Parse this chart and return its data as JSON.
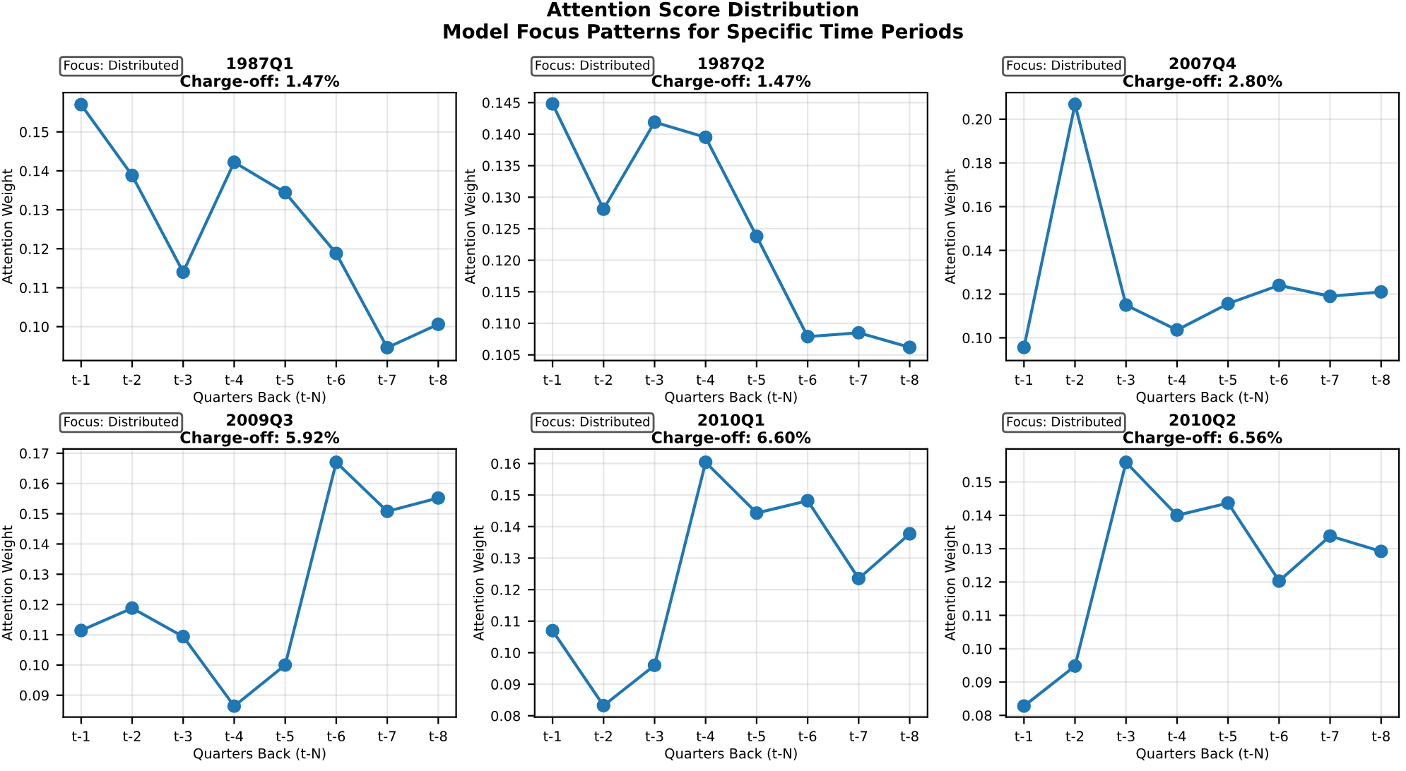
{
  "chart_data": [
    {
      "type": "line",
      "title": "1987Q1",
      "subtitle": "Charge-off: 1.47%",
      "xlabel": "Quarters Back (t-N)",
      "ylabel": "Attention Weight",
      "annotations": [
        "Attention Score Distribution\nModel Focus Patterns for Specific Time Periods",
        "Focus: Distributed"
      ],
      "categories": [
        "t-1",
        "t-2",
        "t-3",
        "t-4",
        "t-5",
        "t-6",
        "t-7",
        "t-8"
      ],
      "series": [
        {
          "color": "#1f77b4",
          "values": [
            0.157,
            0.1388,
            0.114,
            0.1422,
            0.1344,
            0.1188,
            0.0946,
            0.1006
          ]
        }
      ],
      "ylim": [
        0.0913,
        0.1601
      ],
      "yticks": [
        {
          "value": 0.1,
          "label": "0.10"
        },
        {
          "value": 0.11,
          "label": "0.11"
        },
        {
          "value": 0.12,
          "label": "0.12"
        },
        {
          "value": 0.13,
          "label": "0.13"
        },
        {
          "value": 0.14,
          "label": "0.14"
        },
        {
          "value": 0.15,
          "label": "0.15"
        }
      ],
      "grid": true,
      "marker": "circle",
      "line_style": "solid"
    },
    {
      "type": "line",
      "title": "1987Q2",
      "subtitle": "Charge-off: 1.47%",
      "xlabel": "Quarters Back (t-N)",
      "ylabel": "Attention Weight",
      "annotations": [
        "Focus: Distributed"
      ],
      "categories": [
        "t-1",
        "t-2",
        "t-3",
        "t-4",
        "t-5",
        "t-6",
        "t-7",
        "t-8"
      ],
      "series": [
        {
          "color": "#1f77b4",
          "values": [
            0.1448,
            0.1281,
            0.1419,
            0.1395,
            0.1238,
            0.1079,
            0.1085,
            0.1062
          ]
        }
      ],
      "ylim": [
        0.1041,
        0.1466
      ],
      "yticks": [
        {
          "value": 0.105,
          "label": "0.105"
        },
        {
          "value": 0.11,
          "label": "0.110"
        },
        {
          "value": 0.115,
          "label": "0.115"
        },
        {
          "value": 0.12,
          "label": "0.120"
        },
        {
          "value": 0.125,
          "label": "0.125"
        },
        {
          "value": 0.13,
          "label": "0.130"
        },
        {
          "value": 0.135,
          "label": "0.135"
        },
        {
          "value": 0.14,
          "label": "0.140"
        },
        {
          "value": 0.145,
          "label": "0.145"
        }
      ],
      "grid": true,
      "marker": "circle",
      "line_style": "solid"
    },
    {
      "type": "line",
      "title": "2007Q4",
      "subtitle": "Charge-off: 2.80%",
      "xlabel": "Quarters Back (t-N)",
      "ylabel": "Attention Weight",
      "annotations": [
        "Focus: Distributed"
      ],
      "categories": [
        "t-1",
        "t-2",
        "t-3",
        "t-4",
        "t-5",
        "t-6",
        "t-7",
        "t-8"
      ],
      "series": [
        {
          "color": "#1f77b4",
          "values": [
            0.0956,
            0.2068,
            0.115,
            0.1036,
            0.1156,
            0.124,
            0.119,
            0.121
          ]
        }
      ],
      "ylim": [
        0.0896,
        0.2122
      ],
      "yticks": [
        {
          "value": 0.1,
          "label": "0.10"
        },
        {
          "value": 0.12,
          "label": "0.12"
        },
        {
          "value": 0.14,
          "label": "0.14"
        },
        {
          "value": 0.16,
          "label": "0.16"
        },
        {
          "value": 0.18,
          "label": "0.18"
        },
        {
          "value": 0.2,
          "label": "0.20"
        }
      ],
      "grid": true,
      "marker": "circle",
      "line_style": "solid"
    },
    {
      "type": "line",
      "title": "2009Q3",
      "subtitle": "Charge-off: 5.92%",
      "xlabel": "Quarters Back (t-N)",
      "ylabel": "Attention Weight",
      "annotations": [
        "Focus: Distributed"
      ],
      "categories": [
        "t-1",
        "t-2",
        "t-3",
        "t-4",
        "t-5",
        "t-6",
        "t-7",
        "t-8"
      ],
      "series": [
        {
          "color": "#1f77b4",
          "values": [
            0.1114,
            0.1188,
            0.1094,
            0.0864,
            0.1,
            0.167,
            0.1508,
            0.1552
          ]
        }
      ],
      "ylim": [
        0.0828,
        0.1714
      ],
      "yticks": [
        {
          "value": 0.09,
          "label": "0.09"
        },
        {
          "value": 0.1,
          "label": "0.10"
        },
        {
          "value": 0.11,
          "label": "0.11"
        },
        {
          "value": 0.12,
          "label": "0.12"
        },
        {
          "value": 0.13,
          "label": "0.13"
        },
        {
          "value": 0.14,
          "label": "0.14"
        },
        {
          "value": 0.15,
          "label": "0.15"
        },
        {
          "value": 0.16,
          "label": "0.16"
        },
        {
          "value": 0.17,
          "label": "0.17"
        }
      ],
      "grid": true,
      "marker": "circle",
      "line_style": "solid"
    },
    {
      "type": "line",
      "title": "2010Q1",
      "subtitle": "Charge-off: 6.60%",
      "xlabel": "Quarters Back (t-N)",
      "ylabel": "Attention Weight",
      "annotations": [
        "Focus: Distributed"
      ],
      "categories": [
        "t-1",
        "t-2",
        "t-3",
        "t-4",
        "t-5",
        "t-6",
        "t-7",
        "t-8"
      ],
      "series": [
        {
          "color": "#1f77b4",
          "values": [
            0.107,
            0.0832,
            0.096,
            0.1604,
            0.1443,
            0.1482,
            0.1235,
            0.1377
          ]
        }
      ],
      "ylim": [
        0.0796,
        0.1646
      ],
      "yticks": [
        {
          "value": 0.08,
          "label": "0.08"
        },
        {
          "value": 0.09,
          "label": "0.09"
        },
        {
          "value": 0.1,
          "label": "0.10"
        },
        {
          "value": 0.11,
          "label": "0.11"
        },
        {
          "value": 0.12,
          "label": "0.12"
        },
        {
          "value": 0.13,
          "label": "0.13"
        },
        {
          "value": 0.14,
          "label": "0.14"
        },
        {
          "value": 0.15,
          "label": "0.15"
        },
        {
          "value": 0.16,
          "label": "0.16"
        }
      ],
      "grid": true,
      "marker": "circle",
      "line_style": "solid"
    },
    {
      "type": "line",
      "title": "2010Q2",
      "subtitle": "Charge-off: 6.56%",
      "xlabel": "Quarters Back (t-N)",
      "ylabel": "Attention Weight",
      "annotations": [
        "Focus: Distributed"
      ],
      "categories": [
        "t-1",
        "t-2",
        "t-3",
        "t-4",
        "t-5",
        "t-6",
        "t-7",
        "t-8"
      ],
      "series": [
        {
          "color": "#1f77b4",
          "values": [
            0.0828,
            0.0948,
            0.1559,
            0.14,
            0.1437,
            0.1203,
            0.1338,
            0.1292
          ]
        }
      ],
      "ylim": [
        0.0795,
        0.1599
      ],
      "yticks": [
        {
          "value": 0.08,
          "label": "0.08"
        },
        {
          "value": 0.09,
          "label": "0.09"
        },
        {
          "value": 0.1,
          "label": "0.10"
        },
        {
          "value": 0.11,
          "label": "0.11"
        },
        {
          "value": 0.12,
          "label": "0.12"
        },
        {
          "value": 0.13,
          "label": "0.13"
        },
        {
          "value": 0.14,
          "label": "0.14"
        },
        {
          "value": 0.15,
          "label": "0.15"
        }
      ],
      "grid": true,
      "marker": "circle",
      "line_style": "solid"
    }
  ]
}
